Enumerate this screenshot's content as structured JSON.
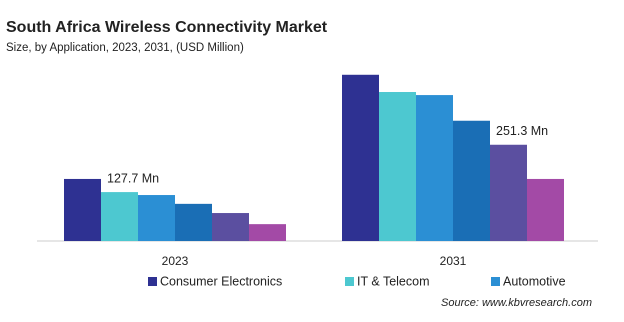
{
  "chart_data": {
    "type": "bar",
    "title": "South Africa Wireless  Connectivity Market",
    "subtitle": "Size, by Application, 2023, 2031, (USD Million)",
    "source": "Source: www.kbvresearch.com",
    "categories": [
      "2023",
      "2031"
    ],
    "series": [
      {
        "name": "Consumer Electronics",
        "color": "#2e3192",
        "values": [
          162,
          434
        ]
      },
      {
        "name": "IT & Telecom",
        "color": "#4dc8d0",
        "values": [
          127.7,
          389
        ],
        "value_labels": [
          "127.7 Mn",
          null
        ]
      },
      {
        "name": "Automotive",
        "color": "#2b8fd4",
        "values": [
          120,
          381
        ]
      },
      {
        "color": "#1a6eb5",
        "values": [
          97,
          314
        ]
      },
      {
        "color": "#5b4fa0",
        "values": [
          73,
          251.3
        ],
        "value_labels": [
          null,
          "251.3 Mn"
        ]
      },
      {
        "color": "#a34aa6",
        "values": [
          44,
          162
        ]
      }
    ]
  }
}
